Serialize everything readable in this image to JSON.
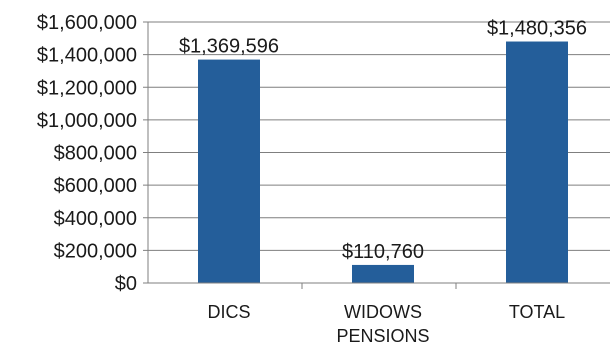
{
  "chart_data": {
    "type": "bar",
    "categories": [
      [
        "DICS"
      ],
      [
        "WIDOWS",
        "PENSIONS"
      ],
      [
        "TOTAL"
      ]
    ],
    "values": [
      1369596,
      110760,
      1480356
    ],
    "data_labels": [
      "$1,369,596",
      "$110,760",
      "$1,480,356"
    ],
    "y_ticks": [
      {
        "value": 0,
        "label": "$0"
      },
      {
        "value": 200000,
        "label": "$200,000"
      },
      {
        "value": 400000,
        "label": "$400,000"
      },
      {
        "value": 600000,
        "label": "$600,000"
      },
      {
        "value": 800000,
        "label": "$800,000"
      },
      {
        "value": 1000000,
        "label": "$1,000,000"
      },
      {
        "value": 1200000,
        "label": "$1,200,000"
      },
      {
        "value": 1400000,
        "label": "$1,400,000"
      },
      {
        "value": 1600000,
        "label": "$1,600,000"
      }
    ],
    "ylim": [
      0,
      1600000
    ],
    "title": "",
    "xlabel": "",
    "ylabel": "",
    "grid": true,
    "legend": "none",
    "colors": {
      "bar": "#245e9a",
      "grid": "#7f7f7f",
      "text": "#1a1a1a"
    }
  }
}
